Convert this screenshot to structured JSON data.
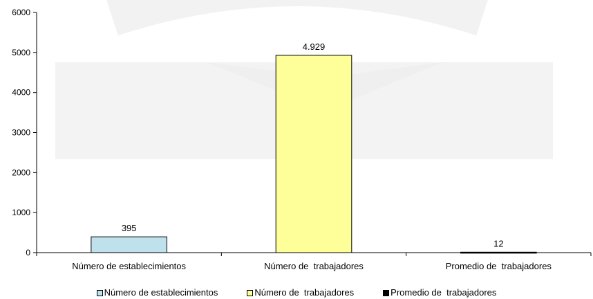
{
  "chart_data": {
    "type": "bar",
    "categories": [
      "Número de establecimientos",
      "Número de  trabajadores",
      "Promedio de  trabajadores"
    ],
    "values": [
      395,
      4929,
      12
    ],
    "data_labels": [
      "395",
      "4.929",
      "12"
    ],
    "colors": [
      "#bfe1ec",
      "#ffff99",
      "#000000"
    ],
    "ylim": [
      0,
      6000
    ],
    "yticks": [
      0,
      1000,
      2000,
      3000,
      4000,
      5000,
      6000
    ],
    "ytick_labels": [
      "0",
      "1000",
      "2000",
      "3000",
      "4000",
      "5000",
      "6000"
    ],
    "grid": false,
    "legend_position": "bottom",
    "legend": [
      {
        "label": "Número de establecimientos",
        "color": "#bfe1ec"
      },
      {
        "label": "Número de  trabajadores",
        "color": "#ffff99"
      },
      {
        "label": "Promedio de  trabajadores",
        "color": "#000000"
      }
    ]
  }
}
